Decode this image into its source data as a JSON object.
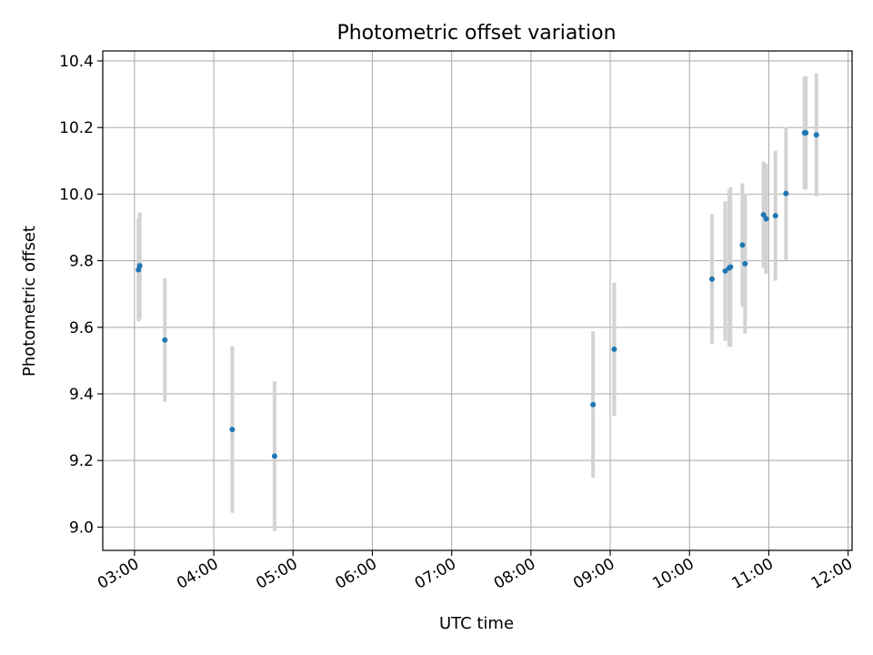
{
  "chart_data": {
    "type": "scatter",
    "title": "Photometric offset variation",
    "xlabel": "UTC time",
    "ylabel": "Photometric offset",
    "x_ticks": [
      "03:00",
      "04:00",
      "05:00",
      "06:00",
      "07:00",
      "08:00",
      "09:00",
      "10:00",
      "11:00",
      "12:00"
    ],
    "y_ticks": [
      "9.0",
      "9.2",
      "9.4",
      "9.6",
      "9.8",
      "10.0",
      "10.2",
      "10.4"
    ],
    "xlim": [
      "02:36",
      "12:03"
    ],
    "ylim": [
      8.93,
      10.43
    ],
    "grid": true,
    "point_color": "#1f77b4",
    "errorbar_color": "#d3d3d3",
    "points": [
      {
        "time": "03:03",
        "y": 9.773,
        "err": 0.155
      },
      {
        "time": "03:04",
        "y": 9.785,
        "err": 0.16
      },
      {
        "time": "03:23",
        "y": 9.562,
        "err": 0.185
      },
      {
        "time": "04:14",
        "y": 9.293,
        "err": 0.25
      },
      {
        "time": "04:46",
        "y": 9.213,
        "err": 0.225
      },
      {
        "time": "08:47",
        "y": 9.368,
        "err": 0.22
      },
      {
        "time": "09:03",
        "y": 9.534,
        "err": 0.2
      },
      {
        "time": "10:17",
        "y": 9.745,
        "err": 0.195
      },
      {
        "time": "10:27",
        "y": 9.769,
        "err": 0.21
      },
      {
        "time": "10:30",
        "y": 9.778,
        "err": 0.235
      },
      {
        "time": "10:31",
        "y": 9.781,
        "err": 0.24
      },
      {
        "time": "10:40",
        "y": 9.847,
        "err": 0.185
      },
      {
        "time": "10:42",
        "y": 9.791,
        "err": 0.21
      },
      {
        "time": "10:56",
        "y": 9.938,
        "err": 0.16
      },
      {
        "time": "10:58",
        "y": 9.926,
        "err": 0.165
      },
      {
        "time": "11:05",
        "y": 9.935,
        "err": 0.195
      },
      {
        "time": "11:13",
        "y": 10.002,
        "err": 0.2
      },
      {
        "time": "11:27",
        "y": 10.184,
        "err": 0.17
      },
      {
        "time": "11:28",
        "y": 10.184,
        "err": 0.17
      },
      {
        "time": "11:36",
        "y": 10.178,
        "err": 0.185
      }
    ]
  }
}
